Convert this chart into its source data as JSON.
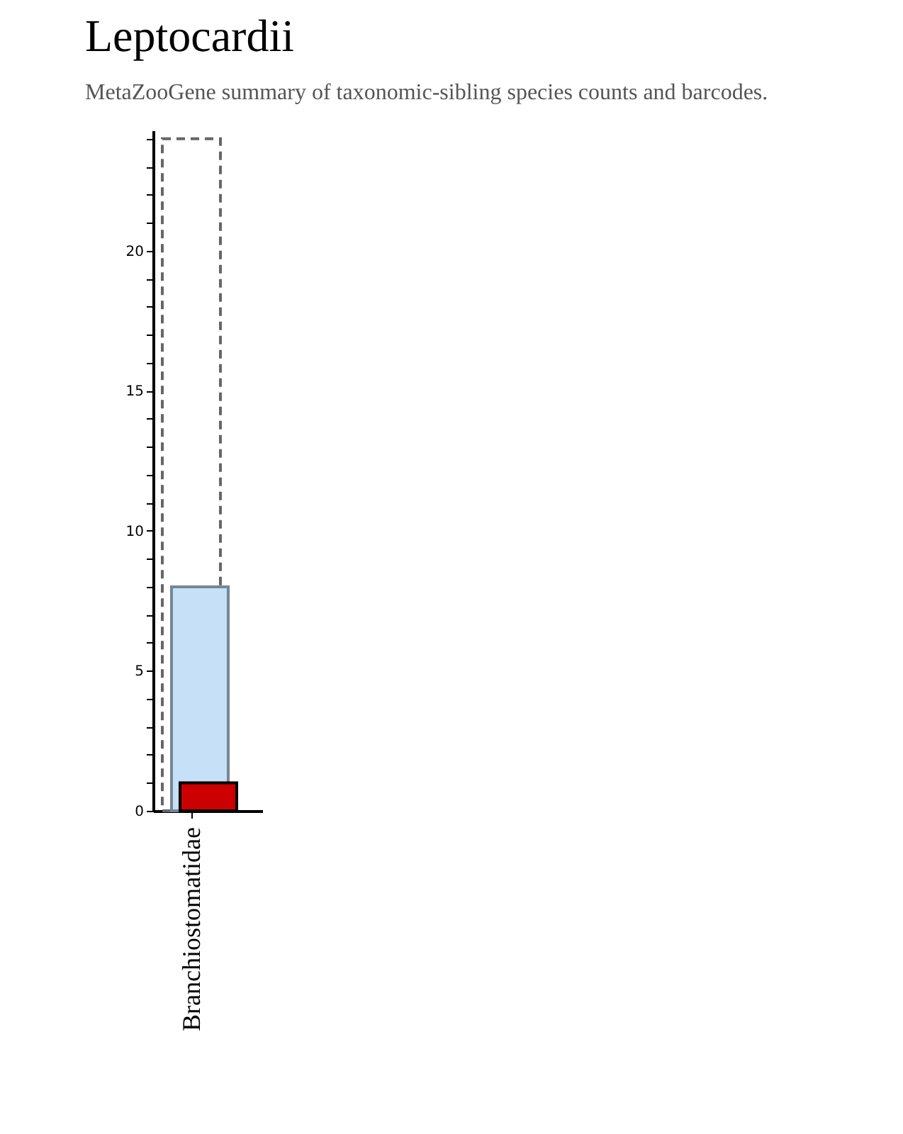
{
  "chart_data": {
    "type": "bar",
    "title": "Leptocardii",
    "subtitle": "MetaZooGene summary of taxonomic-sibling species counts and barcodes.",
    "categories": [
      "Branchiostomatidae"
    ],
    "series": [
      {
        "color": "#666666",
        "line_style": "dashed",
        "values": [
          24
        ]
      },
      {
        "color": "#c6e0f8",
        "values": [
          8
        ]
      },
      {
        "color": "#cc0000",
        "values": [
          1
        ]
      }
    ],
    "ylim": [
      0,
      24.3
    ],
    "yticks": [
      0,
      {
        "value": 1,
        "label": null
      },
      {
        "value": 2,
        "label": null
      },
      {
        "value": 3,
        "label": null
      },
      {
        "value": 4,
        "label": null
      },
      5,
      {
        "value": 6,
        "label": null
      },
      {
        "value": 7,
        "label": null
      },
      {
        "value": 8,
        "label": null
      },
      {
        "value": 9,
        "label": null
      },
      10,
      {
        "value": 11,
        "label": null
      },
      {
        "value": 12,
        "label": null
      },
      {
        "value": 13,
        "label": null
      },
      {
        "value": 14,
        "label": null
      },
      15,
      {
        "value": 16,
        "label": null
      },
      {
        "value": 17,
        "label": null
      },
      {
        "value": 18,
        "label": null
      },
      {
        "value": 19,
        "label": null
      },
      20,
      {
        "value": 21,
        "label": null
      },
      {
        "value": 22,
        "label": null
      },
      {
        "value": 23,
        "label": null
      },
      {
        "value": 24,
        "label": null
      }
    ],
    "grid": false
  }
}
